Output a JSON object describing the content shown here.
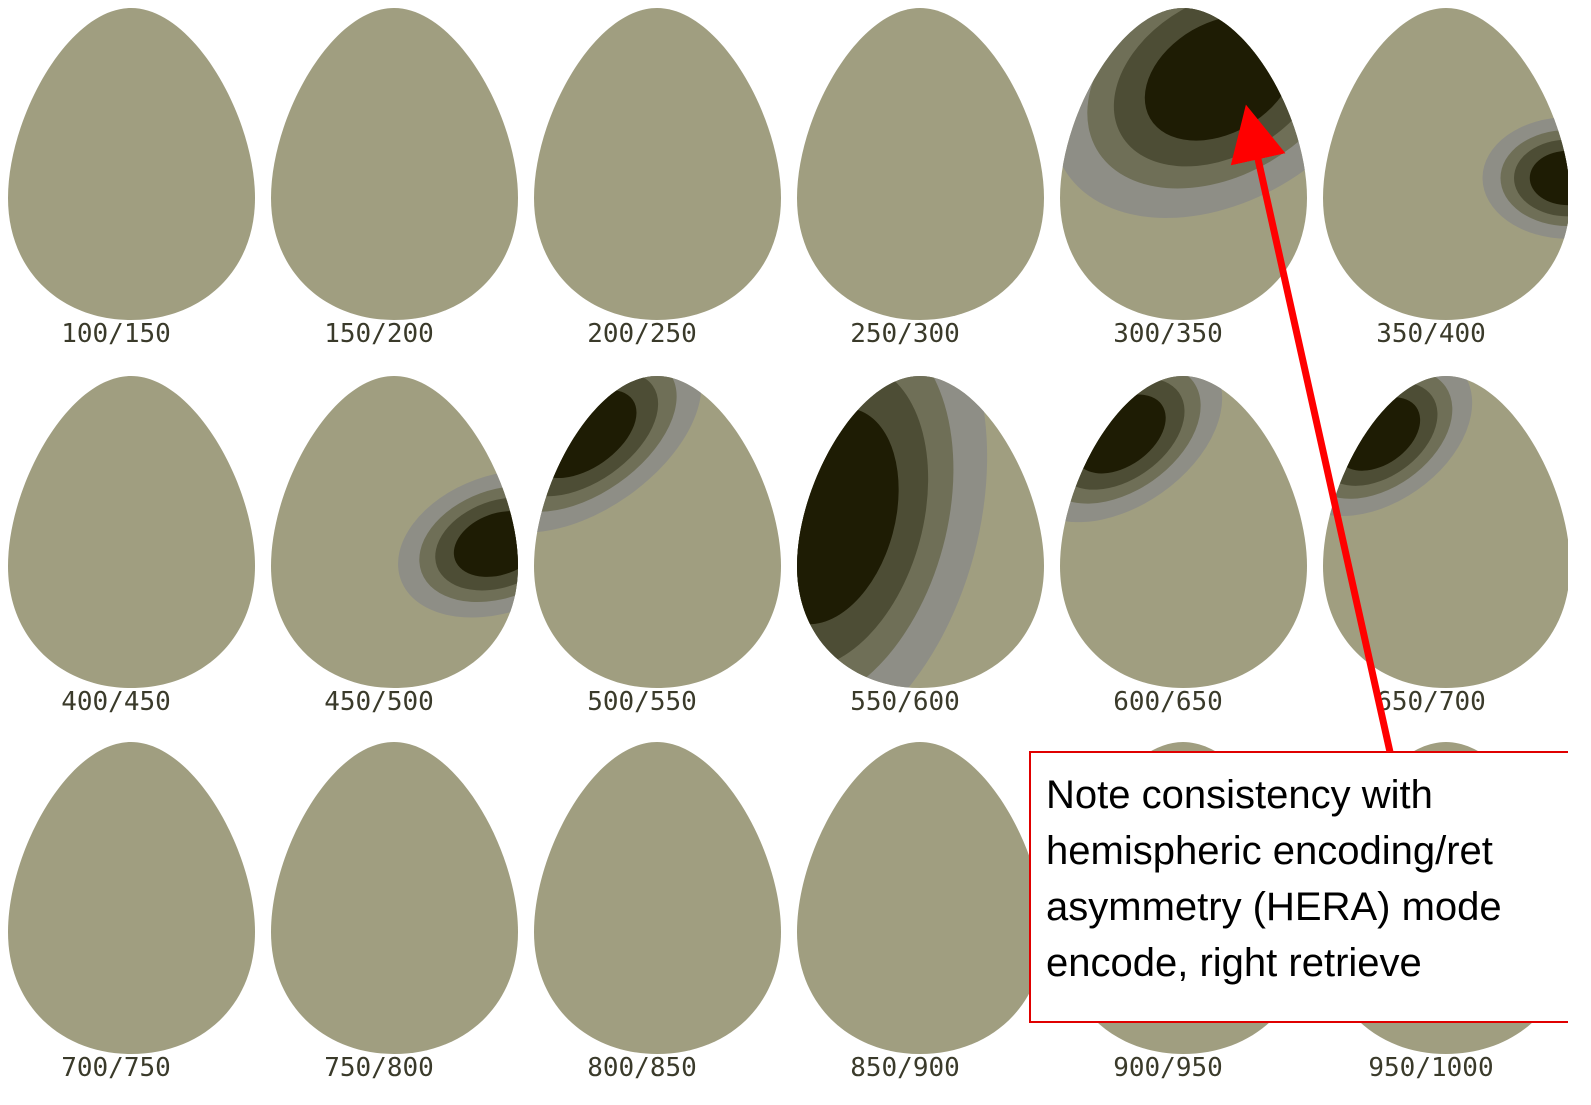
{
  "maps": [
    {
      "label": "100/150"
    },
    {
      "label": "150/200"
    },
    {
      "label": "200/250"
    },
    {
      "label": "250/300"
    },
    {
      "label": "300/350"
    },
    {
      "label": "350/400"
    },
    {
      "label": "400/450"
    },
    {
      "label": "450/500"
    },
    {
      "label": "500/550"
    },
    {
      "label": "550/600"
    },
    {
      "label": "600/650"
    },
    {
      "label": "650/700"
    },
    {
      "label": "700/750"
    },
    {
      "label": "750/800"
    },
    {
      "label": "800/850"
    },
    {
      "label": "850/900"
    },
    {
      "label": "900/950"
    },
    {
      "label": "950/1000"
    }
  ],
  "callout": {
    "lines": [
      "Note consistency with",
      "hemispheric encoding/ret",
      "asymmetry (HERA) mode",
      "encode, right retrieve"
    ]
  }
}
